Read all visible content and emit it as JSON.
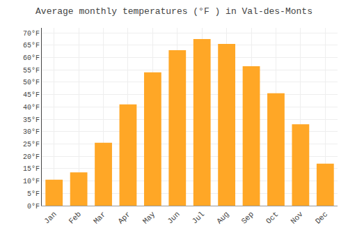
{
  "chart_data": {
    "type": "bar",
    "title": "Average monthly temperatures (°F ) in Val-des-Monts",
    "categories": [
      "Jan",
      "Feb",
      "Mar",
      "Apr",
      "May",
      "Jun",
      "Jul",
      "Aug",
      "Sep",
      "Oct",
      "Nov",
      "Dec"
    ],
    "values": [
      10.5,
      13.5,
      25.5,
      41.0,
      54.0,
      63.0,
      67.5,
      65.5,
      56.5,
      45.5,
      33.0,
      17.0
    ],
    "color": "#FFA726",
    "ylim": [
      0,
      72
    ],
    "yticks": [
      {
        "value": 0,
        "label": "0°F"
      },
      {
        "value": 5,
        "label": "5°F"
      },
      {
        "value": 10,
        "label": "10°F"
      },
      {
        "value": 15,
        "label": "15°F"
      },
      {
        "value": 20,
        "label": "20°F"
      },
      {
        "value": 25,
        "label": "25°F"
      },
      {
        "value": 30,
        "label": "30°F"
      },
      {
        "value": 35,
        "label": "35°F"
      },
      {
        "value": 40,
        "label": "40°F"
      },
      {
        "value": 45,
        "label": "45°F"
      },
      {
        "value": 50,
        "label": "50°F"
      },
      {
        "value": 55,
        "label": "55°F"
      },
      {
        "value": 60,
        "label": "60°F"
      },
      {
        "value": 65,
        "label": "65°F"
      },
      {
        "value": 70,
        "label": "70°F"
      }
    ],
    "grid": true
  }
}
